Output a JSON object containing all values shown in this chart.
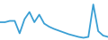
{
  "x": [
    0,
    1,
    2,
    3,
    4,
    5,
    6,
    7,
    8,
    9,
    10,
    11,
    12,
    13,
    14,
    15,
    16,
    17,
    18,
    19,
    20,
    21,
    22
  ],
  "y": [
    0.55,
    0.55,
    0.58,
    0.58,
    0.3,
    0.62,
    0.78,
    0.55,
    0.72,
    0.52,
    0.45,
    0.4,
    0.36,
    0.32,
    0.28,
    0.25,
    0.22,
    0.2,
    0.22,
    0.95,
    0.35,
    0.25,
    0.22
  ],
  "line_color": "#3a9fd4",
  "bg_color": "#ffffff",
  "linewidth": 1.3
}
